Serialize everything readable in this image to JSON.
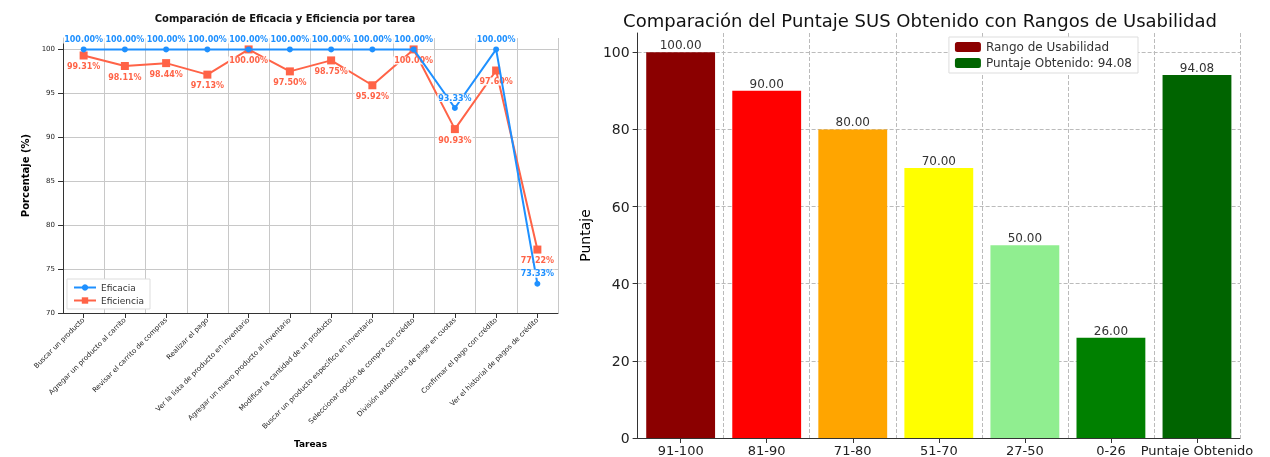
{
  "chart_data": [
    {
      "type": "line",
      "title": "Comparación de Eficacia y Eficiencia por tarea",
      "xlabel": "Tareas",
      "ylabel": "Porcentaje (%)",
      "categories": [
        "Buscar un producto",
        "Agregar un producto al carrito",
        "Revisar el carrito de compras",
        "Realizar el pago",
        "Ver la lista de producto en inventario",
        "Agregar un nuevo producto al inventario",
        "Modificar la cantidad de un producto",
        "Buscar un producto específico en inventario",
        "Seleccionar opción de compra con crédito",
        "División automática de pago en cuotas",
        "Confirmar el pago con crédito",
        "Ver el historial de pagos de crédito"
      ],
      "series": [
        {
          "name": "Eficacia",
          "color": "#1e90ff",
          "marker": "circle",
          "values": [
            100,
            100,
            100,
            100,
            100,
            100,
            100,
            100,
            100,
            93.33,
            100,
            73.33
          ],
          "value_labels": [
            "100.00%",
            "100.00%",
            "100.00%",
            "100.00%",
            "100.00%",
            "100.00%",
            "100.00%",
            "100.00%",
            "100.00%",
            "93.33%",
            "100.00%",
            "73.33%"
          ]
        },
        {
          "name": "Eficiencia",
          "color": "#ff6347",
          "marker": "square",
          "values": [
            99.31,
            98.11,
            98.44,
            97.13,
            100,
            97.5,
            98.75,
            95.92,
            100,
            90.93,
            97.6,
            77.22
          ],
          "value_labels": [
            "99.31%",
            "98.11%",
            "98.44%",
            "97.13%",
            "100.00%",
            "97.50%",
            "98.75%",
            "95.92%",
            "100.00%",
            "90.93%",
            "97.60%",
            "77.22%"
          ]
        }
      ],
      "ylim": [
        70,
        101.3
      ],
      "yticks": [
        70,
        75,
        80,
        85,
        90,
        95,
        100
      ],
      "grid": true,
      "legend": "bottom left"
    },
    {
      "type": "bar",
      "title": "Comparación del Puntaje SUS Obtenido con Rangos de Usabilidad",
      "ylabel": "Puntaje",
      "categories": [
        "91-100",
        "81-90",
        "71-80",
        "51-70",
        "27-50",
        "0-26",
        "Puntaje Obtenido"
      ],
      "series": [
        {
          "name": "Rango de Usabilidad",
          "color": "#8b0000",
          "colors": [
            "#8b0000",
            "#ff0000",
            "#ffa500",
            "#ffff00",
            "#90ee90",
            "#008000",
            null
          ],
          "values": [
            100,
            90,
            80,
            70,
            50,
            26,
            null
          ],
          "value_labels": [
            "100.00",
            "90.00",
            "80.00",
            "70.00",
            "50.00",
            "26.00",
            null
          ]
        },
        {
          "name": "Puntaje Obtenido: 94.08",
          "color": "#006400",
          "values": [
            null,
            null,
            null,
            null,
            null,
            null,
            94.08
          ],
          "value_labels": [
            null,
            null,
            null,
            null,
            null,
            null,
            "94.08"
          ]
        }
      ],
      "ylim": [
        0,
        105
      ],
      "yticks": [
        0,
        20,
        40,
        60,
        80,
        100
      ],
      "grid": true,
      "legend": "top right"
    }
  ]
}
